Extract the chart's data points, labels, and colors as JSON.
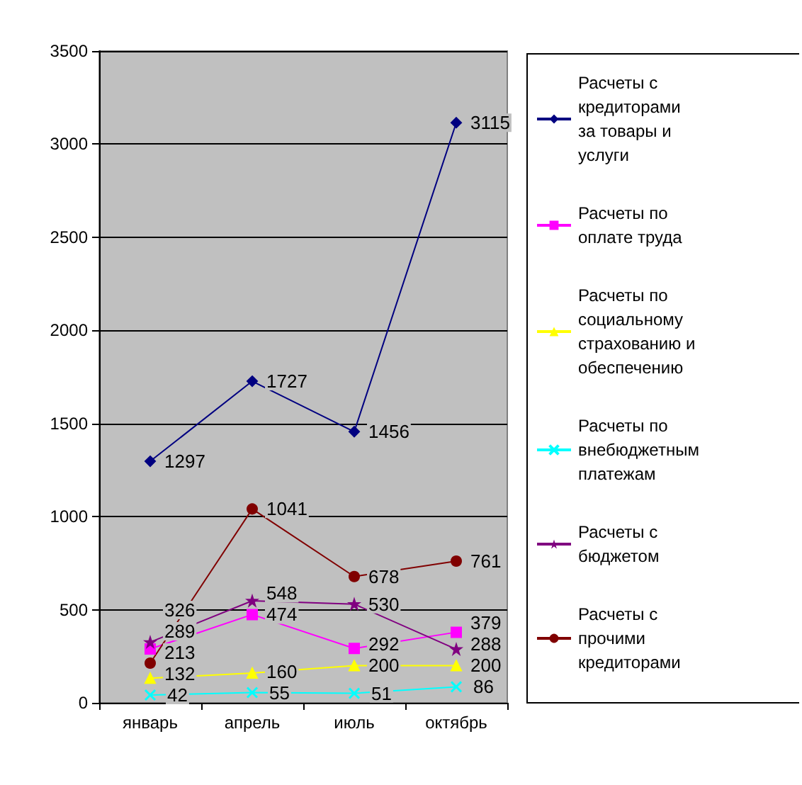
{
  "chart_data": {
    "type": "line",
    "categories": [
      "январь",
      "апрель",
      "июль",
      "октябрь"
    ],
    "ylim": [
      0,
      3500
    ],
    "yticks": [
      0,
      500,
      1000,
      1500,
      2000,
      2500,
      3000,
      3500
    ],
    "grid": "y",
    "legend": "right",
    "data_labels": true,
    "series": [
      {
        "name": "Расчеты с кредиторами за товары и услуги",
        "color": "#000080",
        "marker": "diamond",
        "values": [
          1297,
          1727,
          1456,
          3115
        ]
      },
      {
        "name": "Расчеты по оплате труда",
        "color": "#ff00ff",
        "marker": "square",
        "values": [
          289,
          474,
          292,
          379
        ]
      },
      {
        "name": "Расчеты по социальному страхованию и обеспечению",
        "color": "#ffff00",
        "marker": "triangle",
        "values": [
          132,
          160,
          200,
          200
        ]
      },
      {
        "name": "Расчеты по внебюджетным платежам",
        "color": "#00ffff",
        "marker": "cross",
        "values": [
          42,
          55,
          51,
          86
        ]
      },
      {
        "name": "Расчеты с бюджетом",
        "color": "#800080",
        "marker": "star",
        "values": [
          326,
          548,
          530,
          288
        ]
      },
      {
        "name": "Расчеты с прочими кредиторами",
        "color": "#800000",
        "marker": "circle",
        "values": [
          213,
          1041,
          678,
          761
        ]
      }
    ]
  }
}
